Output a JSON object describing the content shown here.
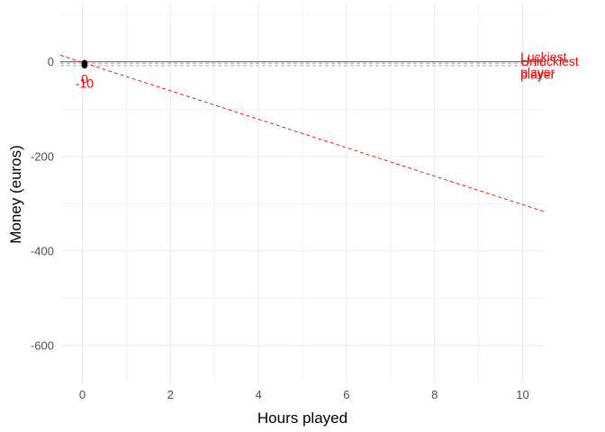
{
  "chart_data": {
    "type": "line",
    "xlabel": "Hours played",
    "ylabel": "Money (euros)",
    "xlim": [
      -0.5,
      10.5
    ],
    "ylim": [
      -680,
      125
    ],
    "x_ticks": [
      0,
      2,
      4,
      6,
      8,
      10
    ],
    "x_tick_labels": [
      "0",
      "2",
      "4",
      "6",
      "8",
      "10"
    ],
    "y_ticks": [
      0,
      -200,
      -400,
      -600
    ],
    "y_tick_labels": [
      "0",
      "-200",
      "-400",
      "-600"
    ],
    "grid": true,
    "series": [
      {
        "name": "",
        "style": "solid",
        "color": "#4d4d4d",
        "x": [
          -0.5,
          10.5
        ],
        "y": [
          0,
          0
        ]
      },
      {
        "name": "Luckiest player",
        "style": "dashed",
        "color": "#aaaaaa",
        "x": [
          -0.5,
          10.5
        ],
        "y": [
          -3,
          -3
        ]
      },
      {
        "name": "Unluckiest player",
        "style": "dashed",
        "color": "#aaaaaa",
        "x": [
          -0.5,
          10.5
        ],
        "y": [
          -8,
          -8
        ]
      },
      {
        "name": "",
        "style": "dashed",
        "color": "#ff0000",
        "x": [
          -0.5,
          10.5
        ],
        "y": [
          14,
          -317
        ]
      }
    ],
    "points": [
      {
        "x": 0.05,
        "y": -2
      },
      {
        "x": 0.05,
        "y": -4
      },
      {
        "x": 0.05,
        "y": -6
      },
      {
        "x": 0.05,
        "y": -8
      }
    ],
    "annotations": [
      {
        "text": "0",
        "x": 0.05,
        "y": -45,
        "anchor": "middle"
      },
      {
        "text": "-10",
        "x": 0.05,
        "y": -55,
        "anchor": "middle"
      },
      {
        "text": "Luckiest",
        "x": 9.95,
        "y": 1,
        "anchor": "start"
      },
      {
        "text": "Unluckiest",
        "x": 9.95,
        "y": -8,
        "anchor": "start"
      },
      {
        "text": "player",
        "x": 9.95,
        "y": -31,
        "anchor": "start"
      },
      {
        "text": "player",
        "x": 9.95,
        "y": -36,
        "anchor": "start"
      }
    ],
    "colors": {
      "background": "#ffffff",
      "grid": "#ebebeb",
      "annotation": "#ff0000",
      "point": "#000000"
    }
  }
}
